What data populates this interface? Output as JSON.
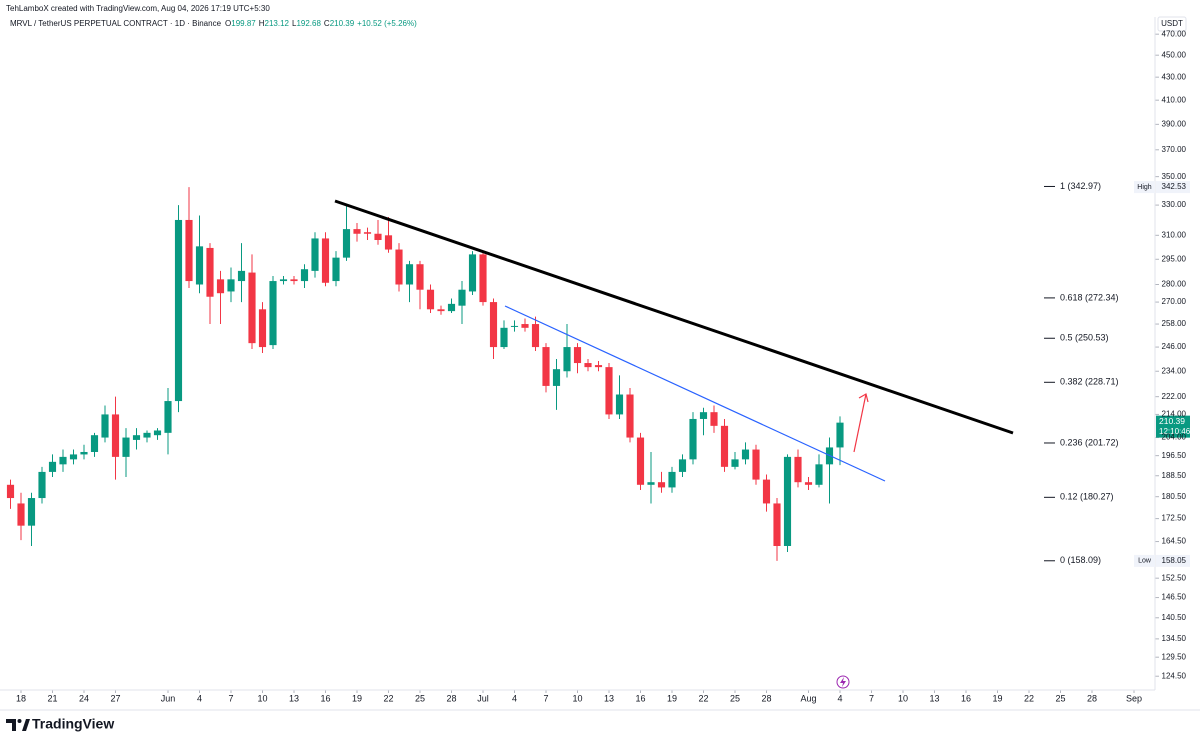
{
  "chart_data": {
    "type": "candlestick",
    "source_note": "TehLamboX created with TradingView.com, Aug 04, 2026 17:19 UTC+5:30",
    "symbol": "MRVL / TetherUS PERPETUAL CONTRACT · 1D · Binance",
    "ohlc_letters": [
      "O",
      "H",
      "L",
      "C"
    ],
    "change": "+10.52 (+5.26%)",
    "currency": "USDT",
    "extreme_labels": [
      "High",
      "Low"
    ],
    "countdown": "12:10:46",
    "brand": "TradingView",
    "up_color": "#089981",
    "down_color": "#f23645",
    "log_scale": true,
    "x": [
      "2026-05-17",
      "2026-05-18",
      "2026-05-19",
      "2026-05-20",
      "2026-05-21",
      "2026-05-22",
      "2026-05-23",
      "2026-05-24",
      "2026-05-25",
      "2026-05-26",
      "2026-05-27",
      "2026-05-28",
      "2026-05-29",
      "2026-05-30",
      "2026-05-31",
      "2026-06-01",
      "2026-06-02",
      "2026-06-03",
      "2026-06-04",
      "2026-06-05",
      "2026-06-06",
      "2026-06-07",
      "2026-06-08",
      "2026-06-09",
      "2026-06-10",
      "2026-06-11",
      "2026-06-12",
      "2026-06-13",
      "2026-06-14",
      "2026-06-15",
      "2026-06-16",
      "2026-06-17",
      "2026-06-18",
      "2026-06-19",
      "2026-06-20",
      "2026-06-21",
      "2026-06-22",
      "2026-06-23",
      "2026-06-24",
      "2026-06-25",
      "2026-06-26",
      "2026-06-27",
      "2026-06-28",
      "2026-06-29",
      "2026-06-30",
      "2026-07-01",
      "2026-07-02",
      "2026-07-03",
      "2026-07-04",
      "2026-07-05",
      "2026-07-06",
      "2026-07-07",
      "2026-07-08",
      "2026-07-09",
      "2026-07-10",
      "2026-07-11",
      "2026-07-12",
      "2026-07-13",
      "2026-07-14",
      "2026-07-15",
      "2026-07-16",
      "2026-07-17",
      "2026-07-18",
      "2026-07-19",
      "2026-07-20",
      "2026-07-21",
      "2026-07-22",
      "2026-07-23",
      "2026-07-24",
      "2026-07-25",
      "2026-07-26",
      "2026-07-27",
      "2026-07-28",
      "2026-07-29",
      "2026-07-30",
      "2026-07-31",
      "2026-08-01",
      "2026-08-02",
      "2026-08-03",
      "2026-08-04"
    ],
    "open": [
      185,
      178,
      170,
      180,
      190,
      193,
      195,
      197,
      198,
      204,
      214,
      196,
      203,
      204,
      205,
      206,
      220,
      320,
      280,
      302,
      283,
      276,
      282,
      287,
      266,
      247,
      282,
      283,
      282,
      288,
      308,
      282,
      296,
      314,
      312,
      311,
      310,
      301,
      280,
      292,
      277,
      266,
      265,
      268,
      276,
      298,
      270,
      246,
      257,
      258,
      258,
      246,
      227,
      234,
      246,
      238,
      237,
      236,
      214,
      223,
      204,
      185,
      186,
      184,
      190,
      195,
      212,
      215,
      209,
      192,
      195,
      199,
      187,
      178,
      163,
      196,
      186,
      185,
      193,
      199.87
    ],
    "high": [
      187,
      182,
      182,
      192,
      197,
      199,
      199,
      201,
      206,
      218,
      222,
      208,
      208,
      207,
      208,
      226,
      330,
      342.53,
      323,
      305,
      288,
      290,
      305,
      298,
      270,
      285,
      285,
      285,
      292,
      312,
      312,
      300,
      330,
      318,
      315,
      320,
      322,
      305,
      294,
      294,
      280,
      268,
      272,
      282,
      300,
      300,
      272,
      260,
      260,
      261,
      262,
      248,
      240,
      258,
      248,
      240,
      239,
      238,
      232,
      226,
      206,
      198,
      190,
      192,
      197,
      215,
      217,
      218,
      212,
      198,
      202,
      201,
      189,
      180,
      197,
      199,
      188,
      197,
      204,
      213.12
    ],
    "low": [
      176,
      165,
      163,
      178,
      188,
      190,
      193,
      195,
      196,
      202,
      187,
      188,
      199,
      202,
      203,
      197,
      215,
      278,
      275,
      258,
      258,
      270,
      270,
      245,
      243,
      245,
      280,
      280,
      278,
      284,
      279,
      279,
      294,
      306,
      307,
      304,
      299,
      276,
      270,
      266,
      264,
      263,
      264,
      258,
      274,
      268,
      240,
      245,
      254,
      254,
      244,
      224,
      216,
      231,
      233,
      234,
      234,
      212,
      212,
      202,
      183,
      178,
      182,
      182,
      188,
      193,
      205,
      206,
      190,
      191,
      193,
      185,
      175,
      158.05,
      161,
      184,
      183,
      184,
      178,
      192.68
    ],
    "close": [
      180,
      170,
      180,
      190,
      194,
      196,
      197,
      198,
      205,
      214,
      196,
      204,
      205,
      206,
      207,
      220,
      320,
      282,
      303,
      273,
      275,
      283,
      288,
      248,
      246,
      282,
      283,
      282,
      289,
      308,
      281,
      296,
      314,
      311,
      311,
      307,
      301,
      280,
      292,
      277,
      266,
      265,
      269,
      277,
      298,
      270,
      246,
      256,
      257,
      256,
      246,
      227,
      235,
      246,
      238,
      236,
      236,
      214,
      223,
      204,
      185,
      186,
      184,
      190,
      195,
      212,
      215,
      209,
      192,
      195,
      199,
      187,
      178,
      163,
      196,
      186,
      185,
      193,
      199.87,
      210.39
    ],
    "xlim": [
      "2026-05-16",
      "2026-09-03"
    ],
    "xticks": [
      {
        "value": "2026-05-18",
        "label": "18"
      },
      {
        "value": "2026-05-21",
        "label": "21"
      },
      {
        "value": "2026-05-24",
        "label": "24"
      },
      {
        "value": "2026-05-27",
        "label": "27"
      },
      {
        "value": "2026-06-01",
        "label": "Jun"
      },
      {
        "value": "2026-06-04",
        "label": "4"
      },
      {
        "value": "2026-06-07",
        "label": "7"
      },
      {
        "value": "2026-06-10",
        "label": "10"
      },
      {
        "value": "2026-06-13",
        "label": "13"
      },
      {
        "value": "2026-06-16",
        "label": "16"
      },
      {
        "value": "2026-06-19",
        "label": "19"
      },
      {
        "value": "2026-06-22",
        "label": "22"
      },
      {
        "value": "2026-06-25",
        "label": "25"
      },
      {
        "value": "2026-06-28",
        "label": "28"
      },
      {
        "value": "2026-07-01",
        "label": "Jul"
      },
      {
        "value": "2026-07-04",
        "label": "4"
      },
      {
        "value": "2026-07-07",
        "label": "7"
      },
      {
        "value": "2026-07-10",
        "label": "10"
      },
      {
        "value": "2026-07-13",
        "label": "13"
      },
      {
        "value": "2026-07-16",
        "label": "16"
      },
      {
        "value": "2026-07-19",
        "label": "19"
      },
      {
        "value": "2026-07-22",
        "label": "22"
      },
      {
        "value": "2026-07-25",
        "label": "25"
      },
      {
        "value": "2026-07-28",
        "label": "28"
      },
      {
        "value": "2026-08-01",
        "label": "Aug"
      },
      {
        "value": "2026-08-04",
        "label": "4"
      },
      {
        "value": "2026-08-07",
        "label": "7"
      },
      {
        "value": "2026-08-10",
        "label": "10"
      },
      {
        "value": "2026-08-13",
        "label": "13"
      },
      {
        "value": "2026-08-16",
        "label": "16"
      },
      {
        "value": "2026-08-19",
        "label": "19"
      },
      {
        "value": "2026-08-22",
        "label": "22"
      },
      {
        "value": "2026-08-25",
        "label": "25"
      },
      {
        "value": "2026-08-28",
        "label": "28"
      },
      {
        "value": "2026-09-01",
        "label": "Sep"
      }
    ],
    "ylim": [
      121,
      487
    ],
    "yticks": [
      {
        "value": 470,
        "label": "470.00"
      },
      {
        "value": 450,
        "label": "450.00"
      },
      {
        "value": 430,
        "label": "430.00"
      },
      {
        "value": 410,
        "label": "410.00"
      },
      {
        "value": 390,
        "label": "390.00"
      },
      {
        "value": 370,
        "label": "370.00"
      },
      {
        "value": 350,
        "label": "350.00"
      },
      {
        "value": 330,
        "label": "330.00"
      },
      {
        "value": 310,
        "label": "310.00"
      },
      {
        "value": 295,
        "label": "295.00"
      },
      {
        "value": 280,
        "label": "280.00"
      },
      {
        "value": 270,
        "label": "270.00"
      },
      {
        "value": 258,
        "label": "258.00"
      },
      {
        "value": 246,
        "label": "246.00"
      },
      {
        "value": 234,
        "label": "234.00"
      },
      {
        "value": 222,
        "label": "222.00"
      },
      {
        "value": 214,
        "label": "214.00"
      },
      {
        "value": 204,
        "label": "204.00"
      },
      {
        "value": 196.5,
        "label": "196.50"
      },
      {
        "value": 188.5,
        "label": "188.50"
      },
      {
        "value": 180.5,
        "label": "180.50"
      },
      {
        "value": 172.5,
        "label": "172.50"
      },
      {
        "value": 164.5,
        "label": "164.50"
      },
      {
        "value": 152.5,
        "label": "152.50"
      },
      {
        "value": 146.5,
        "label": "146.50"
      },
      {
        "value": 140.5,
        "label": "140.50"
      },
      {
        "value": 134.5,
        "label": "134.50"
      },
      {
        "value": 129.5,
        "label": "129.50"
      },
      {
        "value": 124.5,
        "label": "124.50"
      }
    ],
    "fib_levels": [
      {
        "label": "1 (342.97)",
        "value": 342.97
      },
      {
        "label": "0.618 (272.34)",
        "value": 272.34
      },
      {
        "label": "0.5 (250.53)",
        "value": 250.53
      },
      {
        "label": "0.382 (228.71)",
        "value": 228.71
      },
      {
        "label": "0.236 (201.72)",
        "value": 201.72
      },
      {
        "label": "0.12 (180.27)",
        "value": 180.27
      },
      {
        "label": "0 (158.09)",
        "value": 158.09
      }
    ]
  }
}
